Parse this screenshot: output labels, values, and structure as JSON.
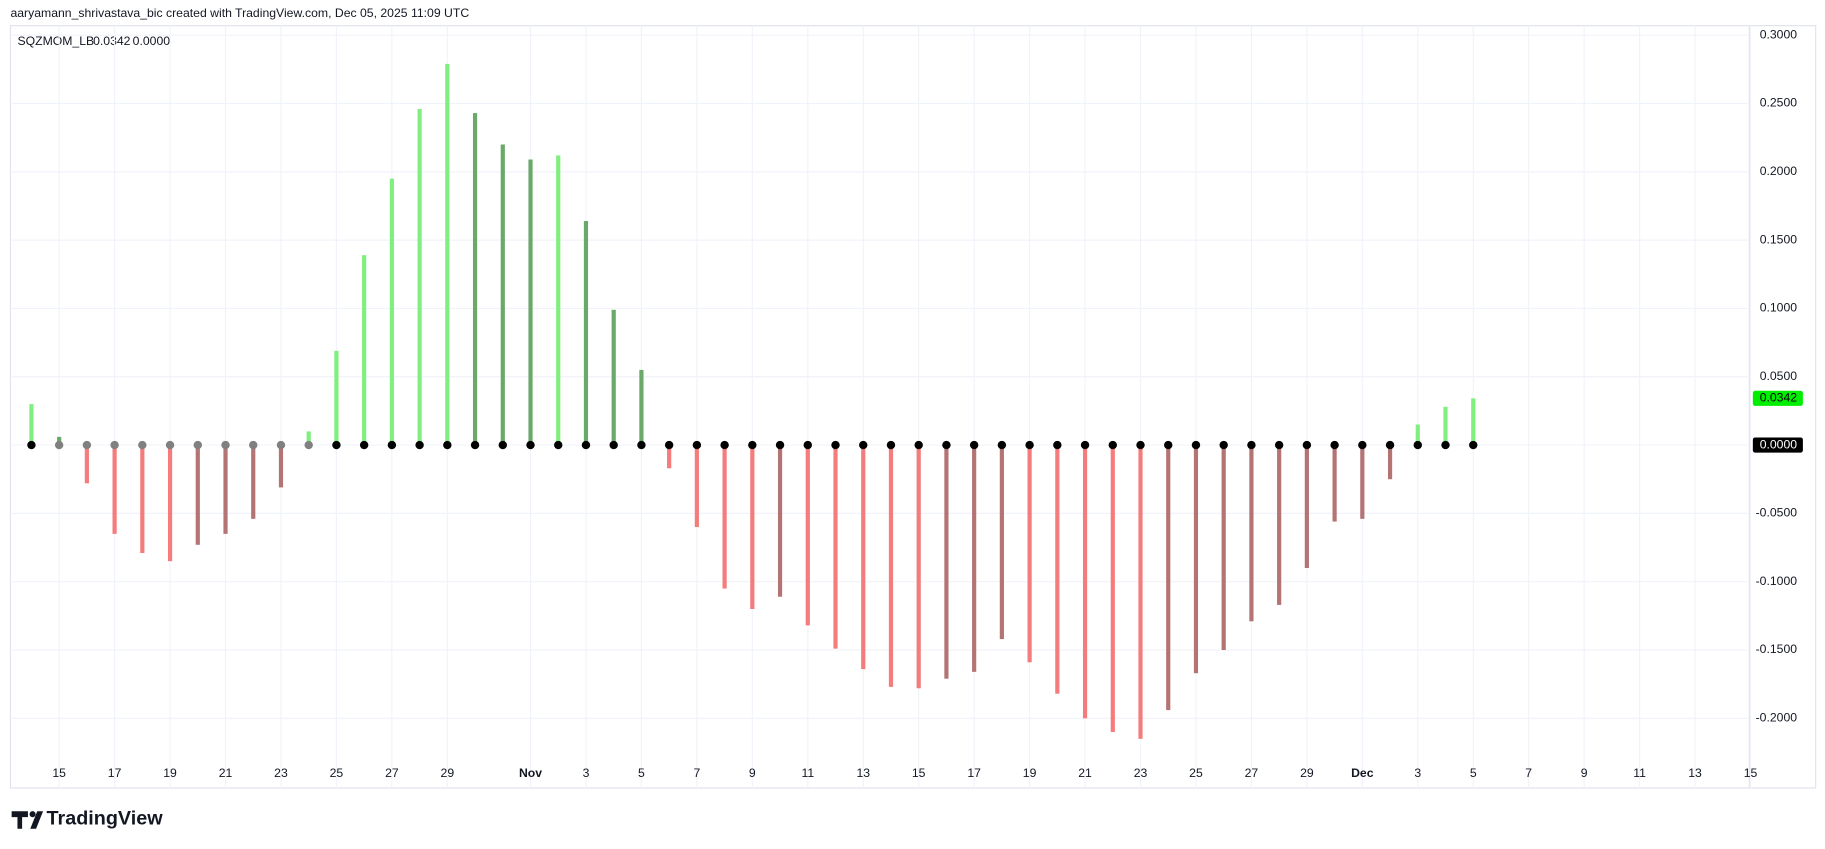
{
  "header": {
    "attribution": "aaryamann_shrivastava_bic created with TradingView.com, Dec 05, 2025 11:09 UTC",
    "logo": "TradingView"
  },
  "legend": {
    "title": "SQZMOM_LB",
    "values": [
      "0.0342",
      "0.0000"
    ],
    "value_colors": [
      "#22dd22",
      "#000000"
    ]
  },
  "chart_data": {
    "type": "bar",
    "categories": [
      null,
      "15",
      null,
      "17",
      null,
      "19",
      null,
      "21",
      null,
      "23",
      null,
      "25",
      null,
      "27",
      null,
      "29",
      null,
      null,
      "Nov",
      null,
      "3",
      null,
      "5",
      null,
      "7",
      null,
      "9",
      null,
      "11",
      null,
      "13",
      null,
      "15",
      null,
      "17",
      null,
      "19",
      null,
      "21",
      null,
      "23",
      null,
      "25",
      null,
      "27",
      null,
      "29",
      null,
      "Dec",
      null,
      "3",
      null,
      "5",
      null,
      "7",
      null,
      "9",
      null,
      "11",
      null,
      "13",
      null,
      "15"
    ],
    "series": [
      {
        "values": [
          0.03,
          0.006,
          -0.028,
          -0.065,
          -0.079,
          -0.085,
          -0.073,
          -0.065,
          -0.054,
          -0.031,
          0.01,
          0.069,
          0.139,
          0.195,
          0.246,
          0.279,
          0.243,
          0.22,
          0.209,
          0.212,
          0.164,
          0.099,
          0.055,
          -0.017,
          -0.06,
          -0.105,
          -0.12,
          -0.111,
          -0.132,
          -0.149,
          -0.164,
          -0.177,
          -0.178,
          -0.171,
          -0.166,
          -0.142,
          -0.159,
          -0.182,
          -0.2,
          -0.21,
          -0.215,
          -0.194,
          -0.167,
          -0.15,
          -0.129,
          -0.117,
          -0.09,
          -0.056,
          -0.054,
          -0.025,
          0.015,
          0.028,
          0.0342,
          null,
          null,
          null,
          null,
          null,
          null,
          null,
          null,
          null,
          null
        ],
        "colors": [
          "#7ff07f",
          "#6aa96a",
          "#f47c7c",
          "#f47c7c",
          "#f47c7c",
          "#f47c7c",
          "#b47474",
          "#b47474",
          "#b47474",
          "#b47474",
          "#7ff07f",
          "#7ff07f",
          "#7ff07f",
          "#7ff07f",
          "#7ff07f",
          "#7ff07f",
          "#6aa96a",
          "#6aa96a",
          "#6aa96a",
          "#7ff07f",
          "#6aa96a",
          "#6aa96a",
          "#6aa96a",
          "#f47c7c",
          "#f47c7c",
          "#f47c7c",
          "#f47c7c",
          "#b47474",
          "#f47c7c",
          "#f47c7c",
          "#f47c7c",
          "#f47c7c",
          "#f47c7c",
          "#b47474",
          "#b47474",
          "#b47474",
          "#f47c7c",
          "#f47c7c",
          "#f47c7c",
          "#f47c7c",
          "#f47c7c",
          "#b47474",
          "#b47474",
          "#b47474",
          "#b47474",
          "#b47474",
          "#b47474",
          "#b47474",
          "#b47474",
          "#b47474",
          "#7ff07f",
          "#7ff07f",
          "#7ff07f",
          null,
          null,
          null,
          null,
          null,
          null,
          null,
          null,
          null,
          null
        ]
      },
      {
        "values": [
          0,
          0,
          0,
          0,
          0,
          0,
          0,
          0,
          0,
          0,
          0,
          0,
          0,
          0,
          0,
          0,
          0,
          0,
          0,
          0,
          0,
          0,
          0,
          0,
          0,
          0,
          0,
          0,
          0,
          0,
          0,
          0,
          0,
          0,
          0,
          0,
          0,
          0,
          0,
          0,
          0,
          0,
          0,
          0,
          0,
          0,
          0,
          0,
          0,
          0,
          0,
          0,
          0,
          null,
          null,
          null,
          null,
          null,
          null,
          null,
          null,
          null,
          null
        ],
        "colors": [
          "#000000",
          "#808080",
          "#808080",
          "#808080",
          "#808080",
          "#808080",
          "#808080",
          "#808080",
          "#808080",
          "#808080",
          "#808080",
          "#000000",
          "#000000",
          "#000000",
          "#000000",
          "#000000",
          "#000000",
          "#000000",
          "#000000",
          "#000000",
          "#000000",
          "#000000",
          "#000000",
          "#000000",
          "#000000",
          "#000000",
          "#000000",
          "#000000",
          "#000000",
          "#000000",
          "#000000",
          "#000000",
          "#000000",
          "#000000",
          "#000000",
          "#000000",
          "#000000",
          "#000000",
          "#000000",
          "#000000",
          "#000000",
          "#000000",
          "#000000",
          "#000000",
          "#000000",
          "#000000",
          "#000000",
          "#000000",
          "#000000",
          "#000000",
          "#000000",
          "#000000",
          "#000000",
          null,
          null,
          null,
          null,
          null,
          null,
          null,
          null,
          null,
          null
        ]
      }
    ],
    "ylim": [
      -0.251,
      0.307
    ],
    "yticks": [
      {
        "value": 0.3,
        "label": "0.3000"
      },
      {
        "value": 0.25,
        "label": "0.2500"
      },
      {
        "value": 0.2,
        "label": "0.2000"
      },
      {
        "value": 0.15,
        "label": "0.1500"
      },
      {
        "value": 0.1,
        "label": "0.1000"
      },
      {
        "value": 0.05,
        "label": "0.0500"
      },
      {
        "value": 0,
        "label": "0.0000"
      },
      {
        "value": -0.05,
        "label": "-0.0500"
      },
      {
        "value": -0.1,
        "label": "-0.1000"
      },
      {
        "value": -0.15,
        "label": "-0.1500"
      },
      {
        "value": -0.2,
        "label": "-0.2000"
      }
    ],
    "badges": [
      {
        "value": 0.0342,
        "label": "0.0342",
        "color": "#00ee00",
        "text_color": "#000000"
      },
      {
        "value": 0,
        "label": "0.0000",
        "color": "#000000",
        "text_color": "#ffffff"
      }
    ],
    "grid": true
  }
}
